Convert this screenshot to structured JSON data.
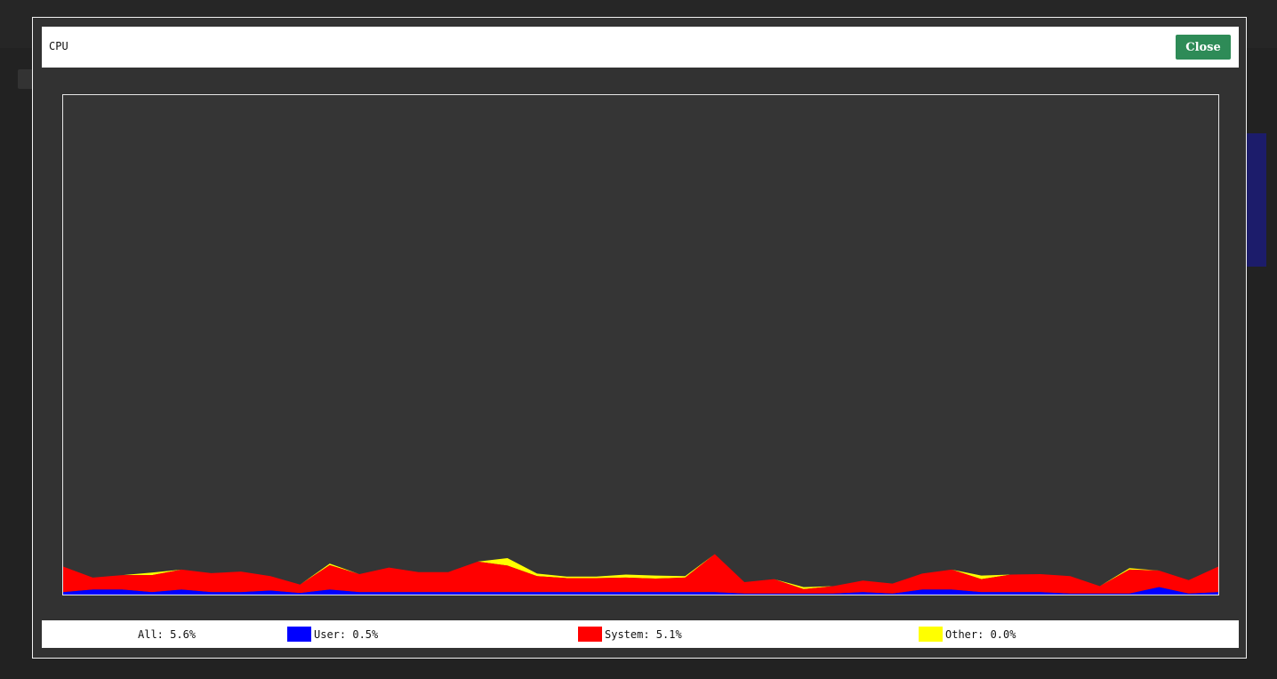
{
  "modal": {
    "title": "CPU",
    "close_label": "Close"
  },
  "legend": {
    "all": "All: 5.6%",
    "user": "User: 0.5%",
    "system": "System: 5.1%",
    "other": "Other: 0.0%"
  },
  "colors": {
    "user": "#0000ff",
    "system": "#ff0000",
    "other": "#ffff00",
    "plot_background": "#353535"
  },
  "chart_data": {
    "type": "area",
    "stacked": true,
    "ylim": [
      0,
      100
    ],
    "grid": false,
    "series": [
      {
        "name": "User",
        "values": [
          0.5,
          1.0,
          1.0,
          0.5,
          1.0,
          0.5,
          0.5,
          0.8,
          0.3,
          1.0,
          0.5,
          0.5,
          0.5,
          0.5,
          0.5,
          0.5,
          0.5,
          0.5,
          0.5,
          0.5,
          0.5,
          0.5,
          0.5,
          0.2,
          0.2,
          0.2,
          0.2,
          0.5,
          0.2,
          1.0,
          1.0,
          0.5,
          0.5,
          0.5,
          0.2,
          0.2,
          0.2,
          1.5,
          0.2,
          0.5
        ]
      },
      {
        "name": "System",
        "values": [
          5.1,
          2.4,
          2.9,
          3.4,
          4.0,
          3.8,
          4.1,
          2.9,
          1.7,
          4.9,
          3.6,
          4.9,
          4.0,
          4.0,
          6.1,
          5.3,
          3.2,
          2.8,
          2.8,
          2.9,
          2.7,
          2.9,
          7.6,
          2.3,
          2.9,
          0.9,
          1.5,
          2.3,
          2.0,
          3.2,
          4.0,
          2.6,
          3.5,
          3.6,
          3.5,
          1.5,
          4.8,
          3.3,
          2.7,
          5.1
        ]
      },
      {
        "name": "Other",
        "values": [
          0.0,
          0.0,
          0.0,
          0.5,
          0.0,
          0.0,
          0.0,
          0.0,
          0.0,
          0.3,
          0.0,
          0.0,
          0.0,
          0.0,
          0.0,
          1.5,
          0.5,
          0.3,
          0.3,
          0.6,
          0.6,
          0.3,
          0.0,
          0.0,
          0.0,
          0.4,
          0.0,
          0.0,
          0.0,
          0.0,
          0.0,
          0.7,
          0.0,
          0.0,
          0.0,
          0.0,
          0.3,
          0.0,
          0.0,
          0.0
        ]
      }
    ]
  }
}
